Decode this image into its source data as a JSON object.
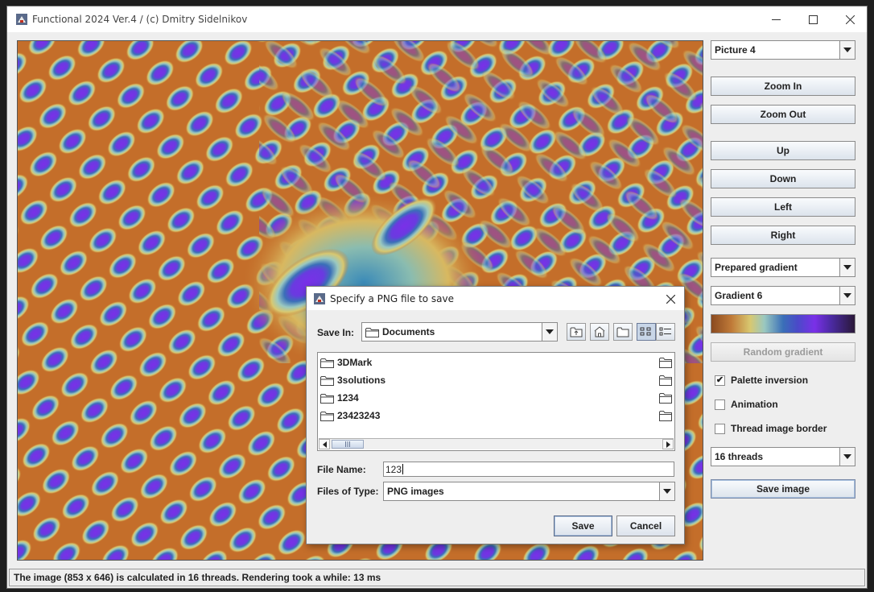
{
  "window": {
    "title": "Functional 2024 Ver.4 / (c) Dmitry Sidelnikov",
    "controls": {
      "minimize": "—",
      "maximize": "☐",
      "close": "✕"
    }
  },
  "panel": {
    "picture_select": "Picture 4",
    "zoom_in": "Zoom In",
    "zoom_out": "Zoom Out",
    "up": "Up",
    "down": "Down",
    "left": "Left",
    "right": "Right",
    "gradient_mode_select": "Prepared gradient",
    "gradient_select": "Gradient 6",
    "random_gradient": "Random gradient",
    "palette_inversion": {
      "label": "Palette inversion",
      "checked": true
    },
    "animation": {
      "label": "Animation",
      "checked": false
    },
    "thread_border": {
      "label": "Thread image border",
      "checked": false
    },
    "threads_select": "16 threads",
    "save_image": "Save image",
    "gradient_colors": [
      "#8a4a20",
      "#c07a38",
      "#d8c870",
      "#9ac8c0",
      "#3a6fb8",
      "#4a4ac8",
      "#7a30e8",
      "#4a2aa0",
      "#2a1838"
    ]
  },
  "status": {
    "text": "The image (853 x 646) is calculated in 16 threads. Rendering took a while: 13 ms"
  },
  "dialog": {
    "title": "Specify a PNG file to save",
    "close": "✕",
    "save_in_label": "Save In:",
    "save_in_value": "Documents",
    "toolbar_icons": [
      "up-folder-icon",
      "home-folder-icon",
      "new-folder-icon",
      "list-view-icon",
      "details-view-icon"
    ],
    "files": [
      "3DMark",
      "3solutions",
      "1234",
      "23423243"
    ],
    "file_name_label": "File Name:",
    "file_name_value": "123",
    "files_of_type_label": "Files of Type:",
    "files_of_type_value": "PNG images",
    "save_button": "Save",
    "cancel_button": "Cancel"
  }
}
